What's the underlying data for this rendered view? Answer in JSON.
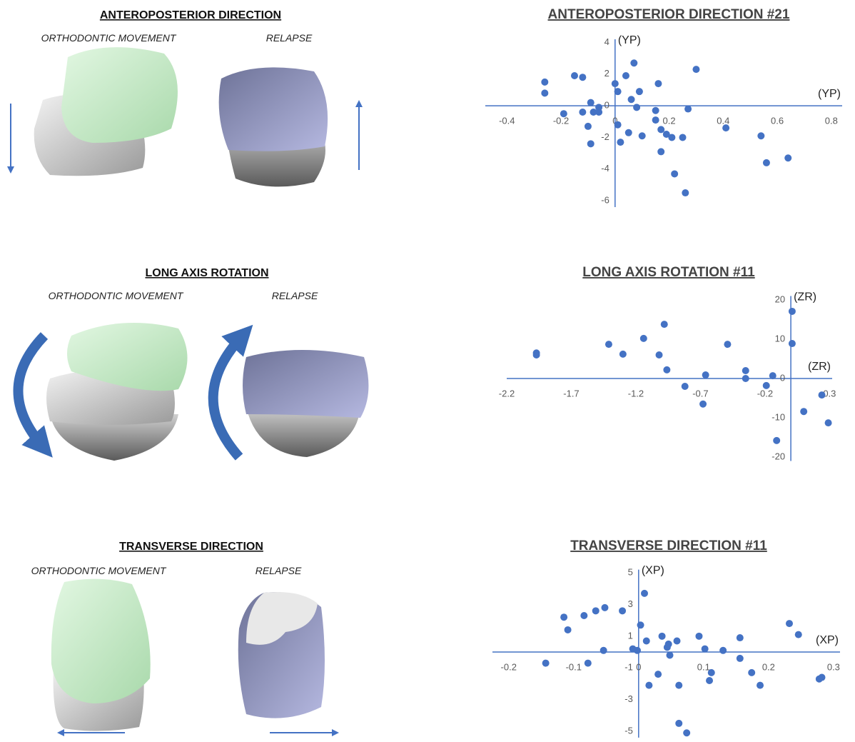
{
  "panels": [
    {
      "title": "ANTEROPOSTERIOR DIRECTION",
      "left_label": "ORTHODONTIC MOVEMENT",
      "right_label": "RELAPSE"
    },
    {
      "title": "LONG AXIS ROTATION",
      "left_label": "ORTHODONTIC MOVEMENT",
      "right_label": "RELAPSE"
    },
    {
      "title": "TRANSVERSE DIRECTION",
      "left_label": "ORTHODONTIC MOVEMENT",
      "right_label": "RELAPSE"
    }
  ],
  "chart_data": [
    {
      "type": "scatter",
      "title": "ANTEROPOSTERIOR DIRECTION #21",
      "x_label": "(YP)",
      "y_label": "(YP)",
      "color": "#4472c4",
      "x": [
        -0.26,
        -0.26,
        -0.15,
        -0.12,
        -0.19,
        -0.09,
        -0.12,
        -0.08,
        -0.06,
        -0.1,
        -0.09,
        -0.06,
        0,
        0.01,
        0.04,
        0.07,
        0.01,
        0.02,
        0.06,
        0.05,
        0.08,
        0.09,
        0.1,
        0.15,
        0.15,
        0.16,
        0.17,
        0.17,
        0.19,
        0.21,
        0.22,
        0.25,
        0.26,
        0.27,
        0.3,
        0.41,
        0.54,
        0.56,
        0.64
      ],
      "values": [
        1.5,
        0.8,
        1.9,
        1.8,
        -0.5,
        0.2,
        -0.4,
        -0.4,
        -0.4,
        -1.3,
        -2.4,
        -0.1,
        1.4,
        0.9,
        1.9,
        2.7,
        -1.2,
        -2.3,
        0.4,
        -1.7,
        -0.1,
        0.9,
        -1.9,
        -0.3,
        -0.9,
        1.4,
        -1.5,
        -2.9,
        -1.8,
        -2,
        -4.3,
        -2,
        -5.5,
        -0.2,
        2.3,
        -1.4,
        -1.9,
        -3.6,
        -3.3
      ],
      "xlim": [
        -0.48,
        0.84
      ],
      "ylim": [
        -6.4,
        4.2
      ],
      "xticks": [
        -0.4,
        -0.2,
        0,
        0.2,
        0.4,
        0.6,
        0.8
      ],
      "yticks": [
        4,
        2,
        0,
        -2,
        -4,
        -6
      ]
    },
    {
      "type": "scatter",
      "title": "LONG AXIS ROTATION #11",
      "x_label": "(ZR)",
      "y_label": "(ZR)",
      "color": "#4472c4",
      "x": [
        -1.97,
        -1.97,
        -1.41,
        -1.3,
        -1.14,
        -0.98,
        -1.02,
        -0.96,
        -0.82,
        -0.66,
        -0.68,
        -0.49,
        -0.35,
        -0.35,
        -0.19,
        -0.14,
        -0.11,
        0.01,
        0.01,
        0.1,
        0.24,
        0.29
      ],
      "values": [
        6.5,
        6,
        8.7,
        6.2,
        10.2,
        13.8,
        6,
        2.2,
        -2,
        0.9,
        -6.5,
        8.7,
        2,
        0,
        -1.8,
        0.7,
        -15.8,
        17.1,
        8.9,
        -8.4,
        -4.2,
        -11.3
      ],
      "xlim": [
        -2.2,
        0.32
      ],
      "ylim": [
        -21,
        21
      ],
      "xticks": [
        -2.2,
        -1.7,
        -1.2,
        -0.7,
        -0.2,
        0.3
      ],
      "yticks": [
        20,
        10,
        0,
        -10,
        -20
      ]
    },
    {
      "type": "scatter",
      "title": "TRANSVERSE DIRECTION #11",
      "x_label": "(XP)",
      "y_label": "(XP)",
      "color": "#4472c4",
      "x": [
        -0.115,
        -0.109,
        -0.084,
        -0.066,
        -0.052,
        -0.025,
        -0.054,
        -0.143,
        -0.078,
        -0.009,
        -0.002,
        0.003,
        0.009,
        0.012,
        0.016,
        0.03,
        0.036,
        0.044,
        0.046,
        0.048,
        0.059,
        0.062,
        0.062,
        0.093,
        0.102,
        0.112,
        0.109,
        0.13,
        0.156,
        0.156,
        0.174,
        0.187,
        0.232,
        0.246,
        0.278,
        0.282,
        0.074
      ],
      "values": [
        2.2,
        1.4,
        2.3,
        2.6,
        2.8,
        2.6,
        0.1,
        -0.7,
        -0.7,
        0.2,
        0.1,
        1.7,
        3.7,
        0.7,
        -2.1,
        -1.4,
        1,
        0.3,
        0.5,
        -0.2,
        0.7,
        -2.1,
        -4.5,
        1,
        0.2,
        -1.3,
        -1.8,
        0.1,
        -0.4,
        0.9,
        -1.3,
        -2.1,
        1.8,
        1.1,
        -1.7,
        -1.6,
        -5.1
      ],
      "xlim": [
        -0.225,
        0.31
      ],
      "ylim": [
        -5.4,
        5.2
      ],
      "xticks": [
        -0.2,
        -0.1,
        0,
        0.1,
        0.2,
        0.3
      ],
      "yticks": [
        5,
        3,
        1,
        -1,
        -3,
        -5
      ]
    }
  ]
}
